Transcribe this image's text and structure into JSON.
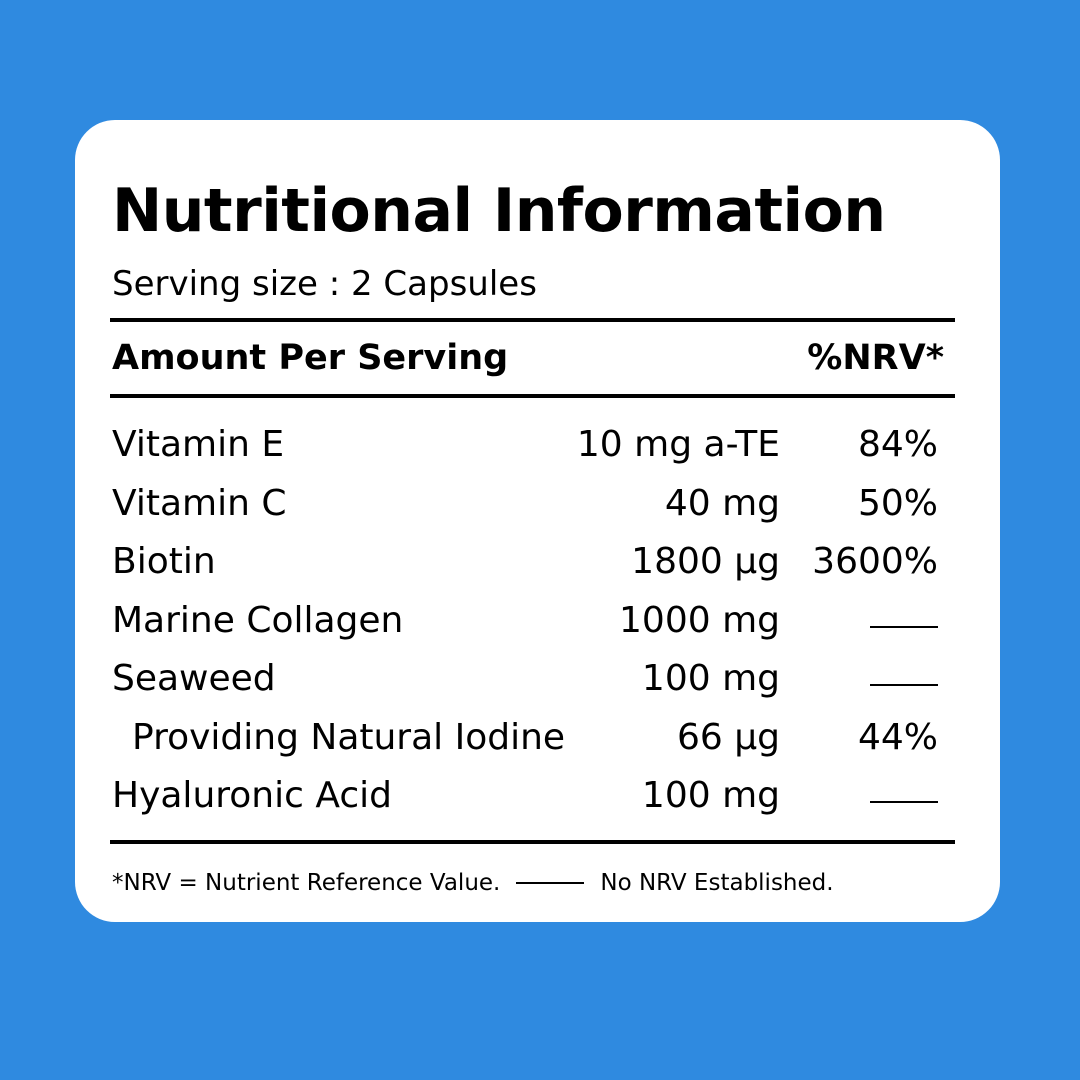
{
  "colors": {
    "background": "#2f8ae0",
    "card": "#ffffff",
    "text": "#000000"
  },
  "title": "Nutritional Information",
  "serving": "Serving size : 2 Capsules",
  "header": {
    "left": "Amount Per Serving",
    "right": "%NRV*"
  },
  "rows": [
    {
      "name": "Vitamin E",
      "amount": "10 mg a-TE",
      "nrv": "84%"
    },
    {
      "name": "Vitamin C",
      "amount": "40 mg",
      "nrv": "50%"
    },
    {
      "name": "Biotin",
      "amount": "1800 µg",
      "nrv": "3600%"
    },
    {
      "name": "Marine Collagen",
      "amount": "1000 mg",
      "nrv": null
    },
    {
      "name": "Seaweed",
      "amount": "100 mg",
      "nrv": null
    },
    {
      "name": "Providing Natural Iodine",
      "amount": "66 µg",
      "nrv": "44%"
    },
    {
      "name": "Hyaluronic Acid",
      "amount": "100 mg",
      "nrv": null
    }
  ],
  "footnote": {
    "left": "*NRV = Nutrient Reference Value.",
    "right": "No NRV Established."
  }
}
